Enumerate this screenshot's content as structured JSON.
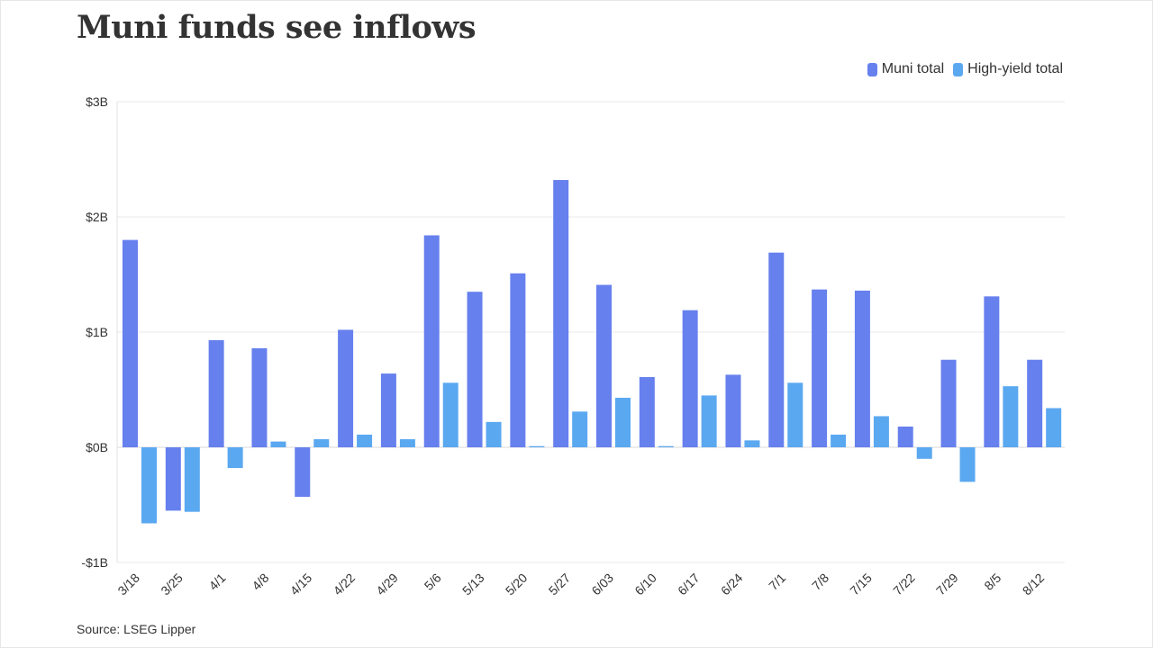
{
  "title": "Muni funds see inflows",
  "source": "Source: LSEG Lipper",
  "colors": {
    "muni": "#6680ee",
    "high_yield": "#5aa8f0",
    "grid": "#e8e8e8",
    "axis": "#e0e0e0"
  },
  "chart_data": {
    "type": "bar",
    "categories": [
      "3/18",
      "3/25",
      "4/1",
      "4/8",
      "4/15",
      "4/22",
      "4/29",
      "5/6",
      "5/13",
      "5/20",
      "5/27",
      "6/03",
      "6/10",
      "6/17",
      "6/24",
      "7/1",
      "7/8",
      "7/15",
      "7/22",
      "7/29",
      "8/5",
      "8/12"
    ],
    "series": [
      {
        "name": "Muni total",
        "values": [
          1.8,
          -0.55,
          0.93,
          0.86,
          -0.43,
          1.02,
          0.64,
          1.84,
          1.35,
          1.51,
          2.32,
          1.41,
          0.61,
          1.19,
          0.63,
          1.69,
          1.37,
          1.36,
          0.18,
          0.76,
          1.31,
          0.76
        ]
      },
      {
        "name": "High-yield total",
        "values": [
          -0.66,
          -0.56,
          -0.18,
          0.05,
          0.07,
          0.11,
          0.07,
          0.56,
          0.22,
          0.01,
          0.31,
          0.43,
          0.01,
          0.45,
          0.06,
          0.56,
          0.11,
          0.27,
          -0.1,
          -0.3,
          0.53,
          0.34
        ]
      }
    ],
    "ylim": [
      -1,
      3
    ],
    "yticks": [
      3,
      2,
      1,
      0,
      -1
    ],
    "ytick_labels": [
      "$3B",
      "$2B",
      "$1B",
      "$0B",
      "-$1B"
    ],
    "legend_position": "top-right",
    "grid": true
  }
}
